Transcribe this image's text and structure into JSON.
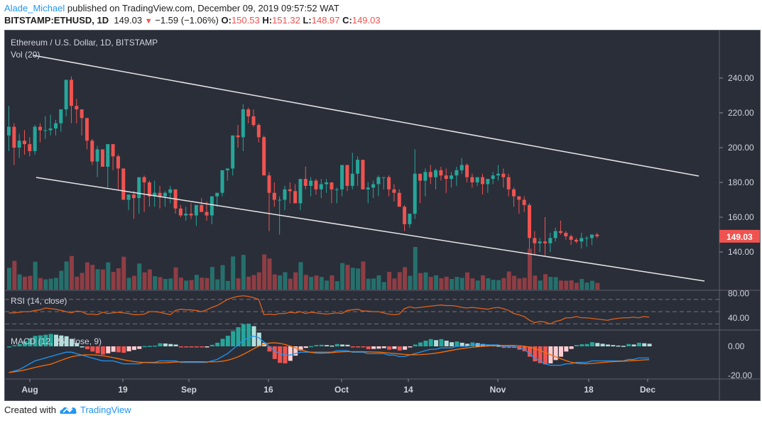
{
  "header": {
    "author": "Alade_Michael",
    "published_text": " published on TradingView.com, December 09, 2019 09:57:52 WAT",
    "symbol_line": "BITSTAMP:ETHUSD, 1D",
    "last": "149.03",
    "change": "−1.59 (−1.06%)",
    "o_label": "O:",
    "o": "150.53",
    "h_label": "H:",
    "h": "151.32",
    "l_label": "L:",
    "l": "148.97",
    "c_label": "C:",
    "c": "149.03"
  },
  "chart": {
    "title": "Ethereum / U.S. Dollar, 1D, BITSTAMP",
    "vol_label": "Vol (20)",
    "rsi_label": "RSI (14, close)",
    "macd_label": "MACD (12, 26, close, 9)",
    "price_ticks": [
      "240.00",
      "220.00",
      "200.00",
      "180.00",
      "160.00",
      "140.00"
    ],
    "rsi_ticks": [
      "80.00",
      "40.00"
    ],
    "macd_ticks": [
      "0.00",
      "-20.00"
    ],
    "last_price_tag": "149.03",
    "x_labels": [
      "Aug",
      "19",
      "Sep",
      "16",
      "Oct",
      "14",
      "Nov",
      "18",
      "Dec"
    ]
  },
  "footer": {
    "created_with": "Created with",
    "brand": "TradingView"
  },
  "colors": {
    "background": "#2a2e39",
    "up": "#26a69a",
    "down": "#ef5350",
    "vol_up": "#26706c",
    "vol_down": "#8e3e44",
    "rsi_line": "#e0611a",
    "macd_line": "#2196f3",
    "signal_line": "#ff6d00",
    "trendline": "#e6e6e6",
    "author_link": "#2196f3"
  },
  "chart_data": {
    "type": "candlestick",
    "title": "Ethereum / U.S. Dollar, 1D, BITSTAMP",
    "symbol": "BITSTAMP:ETHUSD",
    "interval": "1D",
    "x_tick_labels": [
      "Aug",
      "19",
      "Sep",
      "16",
      "Oct",
      "14",
      "Nov",
      "18",
      "Dec"
    ],
    "ylim": [
      128,
      246
    ],
    "y_ticks": [
      140,
      160,
      180,
      200,
      220,
      240
    ],
    "last_close": 149.03,
    "ohlc_last": {
      "open": 150.53,
      "high": 151.32,
      "low": 148.97,
      "close": 149.03
    },
    "candles": [
      [
        207,
        224,
        198,
        212
      ],
      [
        212,
        214,
        190,
        200
      ],
      [
        200,
        208,
        194,
        204
      ],
      [
        204,
        210,
        196,
        202
      ],
      [
        202,
        206,
        195,
        198
      ],
      [
        198,
        213,
        196,
        212
      ],
      [
        212,
        214,
        203,
        210
      ],
      [
        210,
        218,
        205,
        210
      ],
      [
        210,
        219,
        207,
        211
      ],
      [
        211,
        216,
        207,
        214
      ],
      [
        214,
        221,
        209,
        222
      ],
      [
        222,
        228,
        218,
        239
      ],
      [
        239,
        241,
        214,
        224
      ],
      [
        224,
        228,
        214,
        222
      ],
      [
        222,
        222,
        207,
        217
      ],
      [
        217,
        217,
        199,
        204
      ],
      [
        204,
        205,
        190,
        192
      ],
      [
        192,
        201,
        183,
        199
      ],
      [
        199,
        199,
        189,
        189
      ],
      [
        189,
        195,
        177,
        202
      ],
      [
        202,
        199,
        187,
        195
      ],
      [
        195,
        196,
        176,
        188
      ],
      [
        188,
        188,
        170,
        170
      ],
      [
        170,
        173,
        164,
        173
      ],
      [
        173,
        175,
        159,
        171
      ],
      [
        171,
        180,
        162,
        183
      ],
      [
        183,
        184,
        163,
        180
      ],
      [
        180,
        181,
        166,
        172
      ],
      [
        172,
        181,
        166,
        174
      ],
      [
        174,
        178,
        165,
        172
      ],
      [
        172,
        175,
        166,
        174
      ],
      [
        174,
        178,
        168,
        176
      ],
      [
        176,
        174,
        162,
        165
      ],
      [
        165,
        167,
        160,
        161
      ],
      [
        161,
        166,
        158,
        162
      ],
      [
        162,
        168,
        159,
        161
      ],
      [
        161,
        163,
        155,
        167
      ],
      [
        167,
        171,
        164,
        163
      ],
      [
        163,
        169,
        158,
        161
      ],
      [
        161,
        169,
        156,
        172
      ],
      [
        172,
        174,
        166,
        174
      ],
      [
        174,
        184,
        172,
        187
      ],
      [
        187,
        188,
        181,
        188
      ],
      [
        188,
        200,
        184,
        207
      ],
      [
        207,
        213,
        200,
        206
      ],
      [
        206,
        225,
        198,
        222
      ],
      [
        222,
        223,
        214,
        218
      ],
      [
        218,
        222,
        212,
        213
      ],
      [
        213,
        214,
        203,
        206
      ],
      [
        206,
        207,
        194,
        184
      ],
      [
        184,
        186,
        152,
        174
      ],
      [
        174,
        180,
        166,
        170
      ],
      [
        170,
        172,
        150,
        170
      ],
      [
        170,
        178,
        164,
        176
      ],
      [
        176,
        180,
        168,
        175
      ],
      [
        175,
        179,
        168,
        168
      ],
      [
        168,
        180,
        164,
        182
      ],
      [
        182,
        189,
        176,
        178
      ],
      [
        178,
        183,
        172,
        181
      ],
      [
        181,
        182,
        173,
        176
      ],
      [
        176,
        182,
        171,
        179
      ],
      [
        179,
        182,
        174,
        180
      ],
      [
        180,
        180,
        168,
        176
      ],
      [
        176,
        177,
        168,
        176
      ],
      [
        176,
        186,
        172,
        190
      ],
      [
        190,
        190,
        175,
        178
      ],
      [
        178,
        197,
        176,
        185
      ],
      [
        185,
        195,
        178,
        193
      ],
      [
        193,
        186,
        176,
        176
      ],
      [
        176,
        180,
        168,
        177
      ],
      [
        177,
        181,
        171,
        179
      ],
      [
        179,
        184,
        172,
        183
      ],
      [
        183,
        183,
        176,
        183
      ],
      [
        183,
        184,
        172,
        176
      ],
      [
        176,
        179,
        169,
        174
      ],
      [
        174,
        176,
        167,
        166
      ],
      [
        166,
        167,
        152,
        156
      ],
      [
        156,
        160,
        154,
        162
      ],
      [
        162,
        199,
        159,
        185
      ],
      [
        185,
        185,
        168,
        181
      ],
      [
        181,
        188,
        172,
        186
      ],
      [
        186,
        190,
        179,
        183
      ],
      [
        183,
        188,
        176,
        187
      ],
      [
        187,
        189,
        181,
        184
      ],
      [
        184,
        188,
        174,
        182
      ],
      [
        182,
        186,
        177,
        184
      ],
      [
        184,
        189,
        178,
        187
      ],
      [
        187,
        194,
        185,
        190
      ],
      [
        190,
        191,
        180,
        183
      ],
      [
        183,
        185,
        177,
        180
      ],
      [
        180,
        181,
        178,
        183
      ],
      [
        183,
        185,
        173,
        179
      ],
      [
        179,
        182,
        174,
        182
      ],
      [
        182,
        186,
        179,
        184
      ],
      [
        184,
        190,
        181,
        185
      ],
      [
        185,
        188,
        177,
        183
      ],
      [
        183,
        185,
        172,
        176
      ],
      [
        176,
        177,
        166,
        172
      ],
      [
        172,
        172,
        162,
        170
      ],
      [
        170,
        172,
        163,
        167
      ],
      [
        167,
        168,
        135,
        148
      ],
      [
        148,
        152,
        138,
        145
      ],
      [
        145,
        148,
        140,
        146
      ],
      [
        146,
        160,
        138,
        145
      ],
      [
        145,
        151,
        140,
        148
      ],
      [
        148,
        154,
        146,
        152
      ],
      [
        152,
        158,
        150,
        151
      ],
      [
        151,
        152,
        147,
        149
      ],
      [
        149,
        150,
        144,
        147
      ],
      [
        147,
        148,
        145,
        146
      ],
      [
        146,
        151,
        142,
        148
      ],
      [
        148,
        149,
        143,
        148
      ],
      [
        148,
        149,
        144,
        150
      ],
      [
        150,
        151,
        148,
        149
      ]
    ],
    "volume_relative": "bars in lower section of price pane; large spikes near Sep 24 and Nov 22-25",
    "trendlines": [
      {
        "name": "upper channel",
        "from": {
          "x": "late Jul",
          "price": 241
        },
        "to": {
          "x": "mid Dec",
          "price": 180
        }
      },
      {
        "name": "lower channel",
        "from": {
          "x": "early Aug",
          "price": 178
        },
        "to": {
          "x": "mid Dec",
          "price": 123
        }
      }
    ],
    "indicators": [
      {
        "name": "RSI (14, close)",
        "type": "line",
        "levels": [
          70,
          50,
          30
        ],
        "ylim": [
          20,
          85
        ],
        "y_ticks": [
          40,
          80
        ],
        "values": [
          48,
          48,
          49,
          50,
          50,
          52,
          53,
          56,
          55,
          54,
          52,
          50,
          48,
          51,
          50,
          46,
          46,
          45,
          49,
          47,
          48,
          49,
          48,
          47,
          45,
          45,
          46,
          50,
          50,
          49,
          47,
          45,
          52,
          54,
          53,
          53,
          52,
          50,
          53,
          57,
          60,
          65,
          70,
          73,
          75,
          76,
          75,
          73,
          70,
          45,
          46,
          45,
          47,
          47,
          49,
          48,
          50,
          47,
          49,
          48,
          47,
          46,
          47,
          48,
          47,
          52,
          53,
          54,
          51,
          51,
          50,
          50,
          48,
          46,
          45,
          46,
          55,
          58,
          56,
          57,
          58,
          59,
          60,
          61,
          60,
          60,
          59,
          57,
          56,
          57,
          56,
          55,
          54,
          56,
          57,
          55,
          52,
          47,
          45,
          42,
          36,
          32,
          34,
          33,
          30,
          34,
          36,
          40,
          40,
          42,
          40,
          40,
          39,
          38,
          37,
          36,
          38,
          39,
          40,
          40,
          41,
          40,
          42,
          41
        ],
        "final": 41
      },
      {
        "name": "MACD (12, 26, close, 9)",
        "type": "line+histogram",
        "ylim": [
          -22,
          8
        ],
        "y_ticks": [
          0,
          -20
        ],
        "macd_line_trend": "starts ~-18, rises to ~-5 mid-Aug, ~-10 through Sep, peaks ~+7 around Sep 20, falls to ~-3 Oct, ~0 Nov, drops to ~-12 early Dec, ending ~-9",
        "signal_line_trend": "lagging MACD; ~-8 end"
      }
    ]
  }
}
